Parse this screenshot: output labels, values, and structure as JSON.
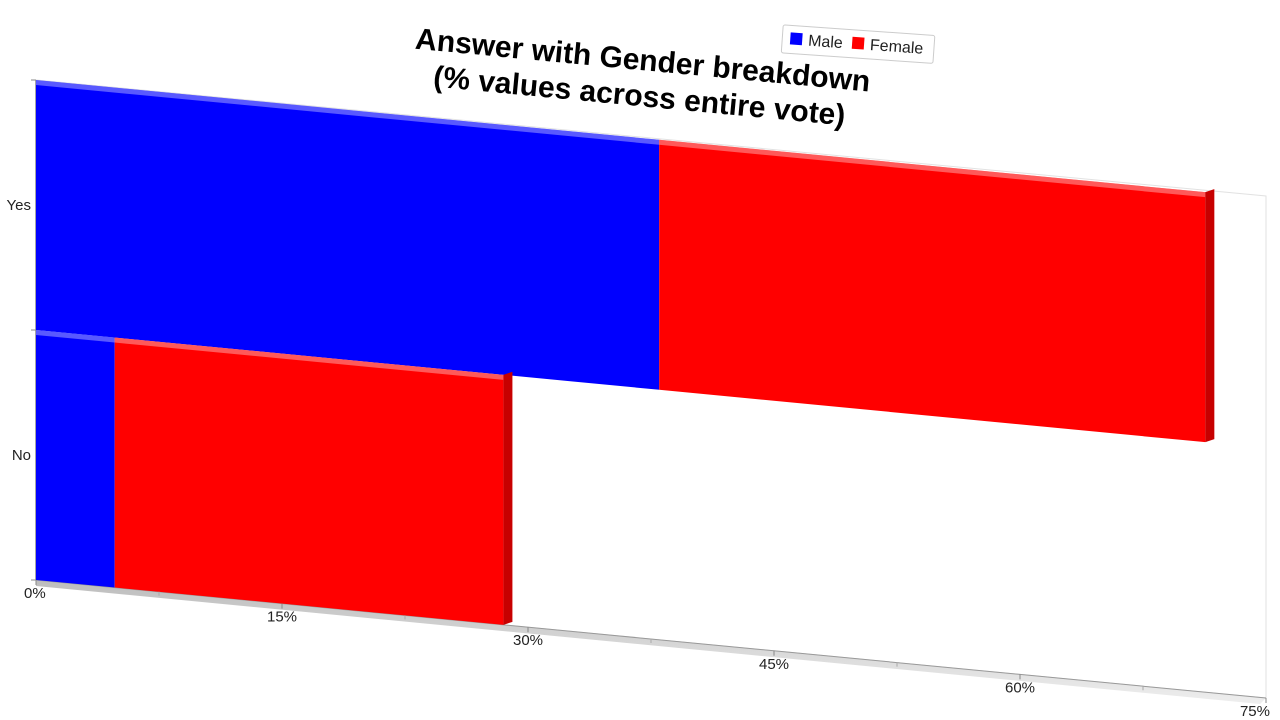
{
  "chart_data": {
    "type": "bar",
    "orientation": "horizontal",
    "stacked": true,
    "title": [
      "Answer with Gender breakdown",
      "(% values across entire vote)"
    ],
    "categories": [
      "Yes",
      "No"
    ],
    "series": [
      {
        "name": "Male",
        "color": "#0000ff",
        "values": [
          38,
          4.8
        ]
      },
      {
        "name": "Female",
        "color": "#ff0000",
        "values": [
          33.3,
          23.7
        ]
      }
    ],
    "x_ticks": [
      "0%",
      "15%",
      "30%",
      "45%",
      "60%",
      "75%"
    ],
    "xlim": [
      0,
      75
    ],
    "legend_placement": "top-right",
    "grid": false,
    "style": "3d-perspective"
  }
}
